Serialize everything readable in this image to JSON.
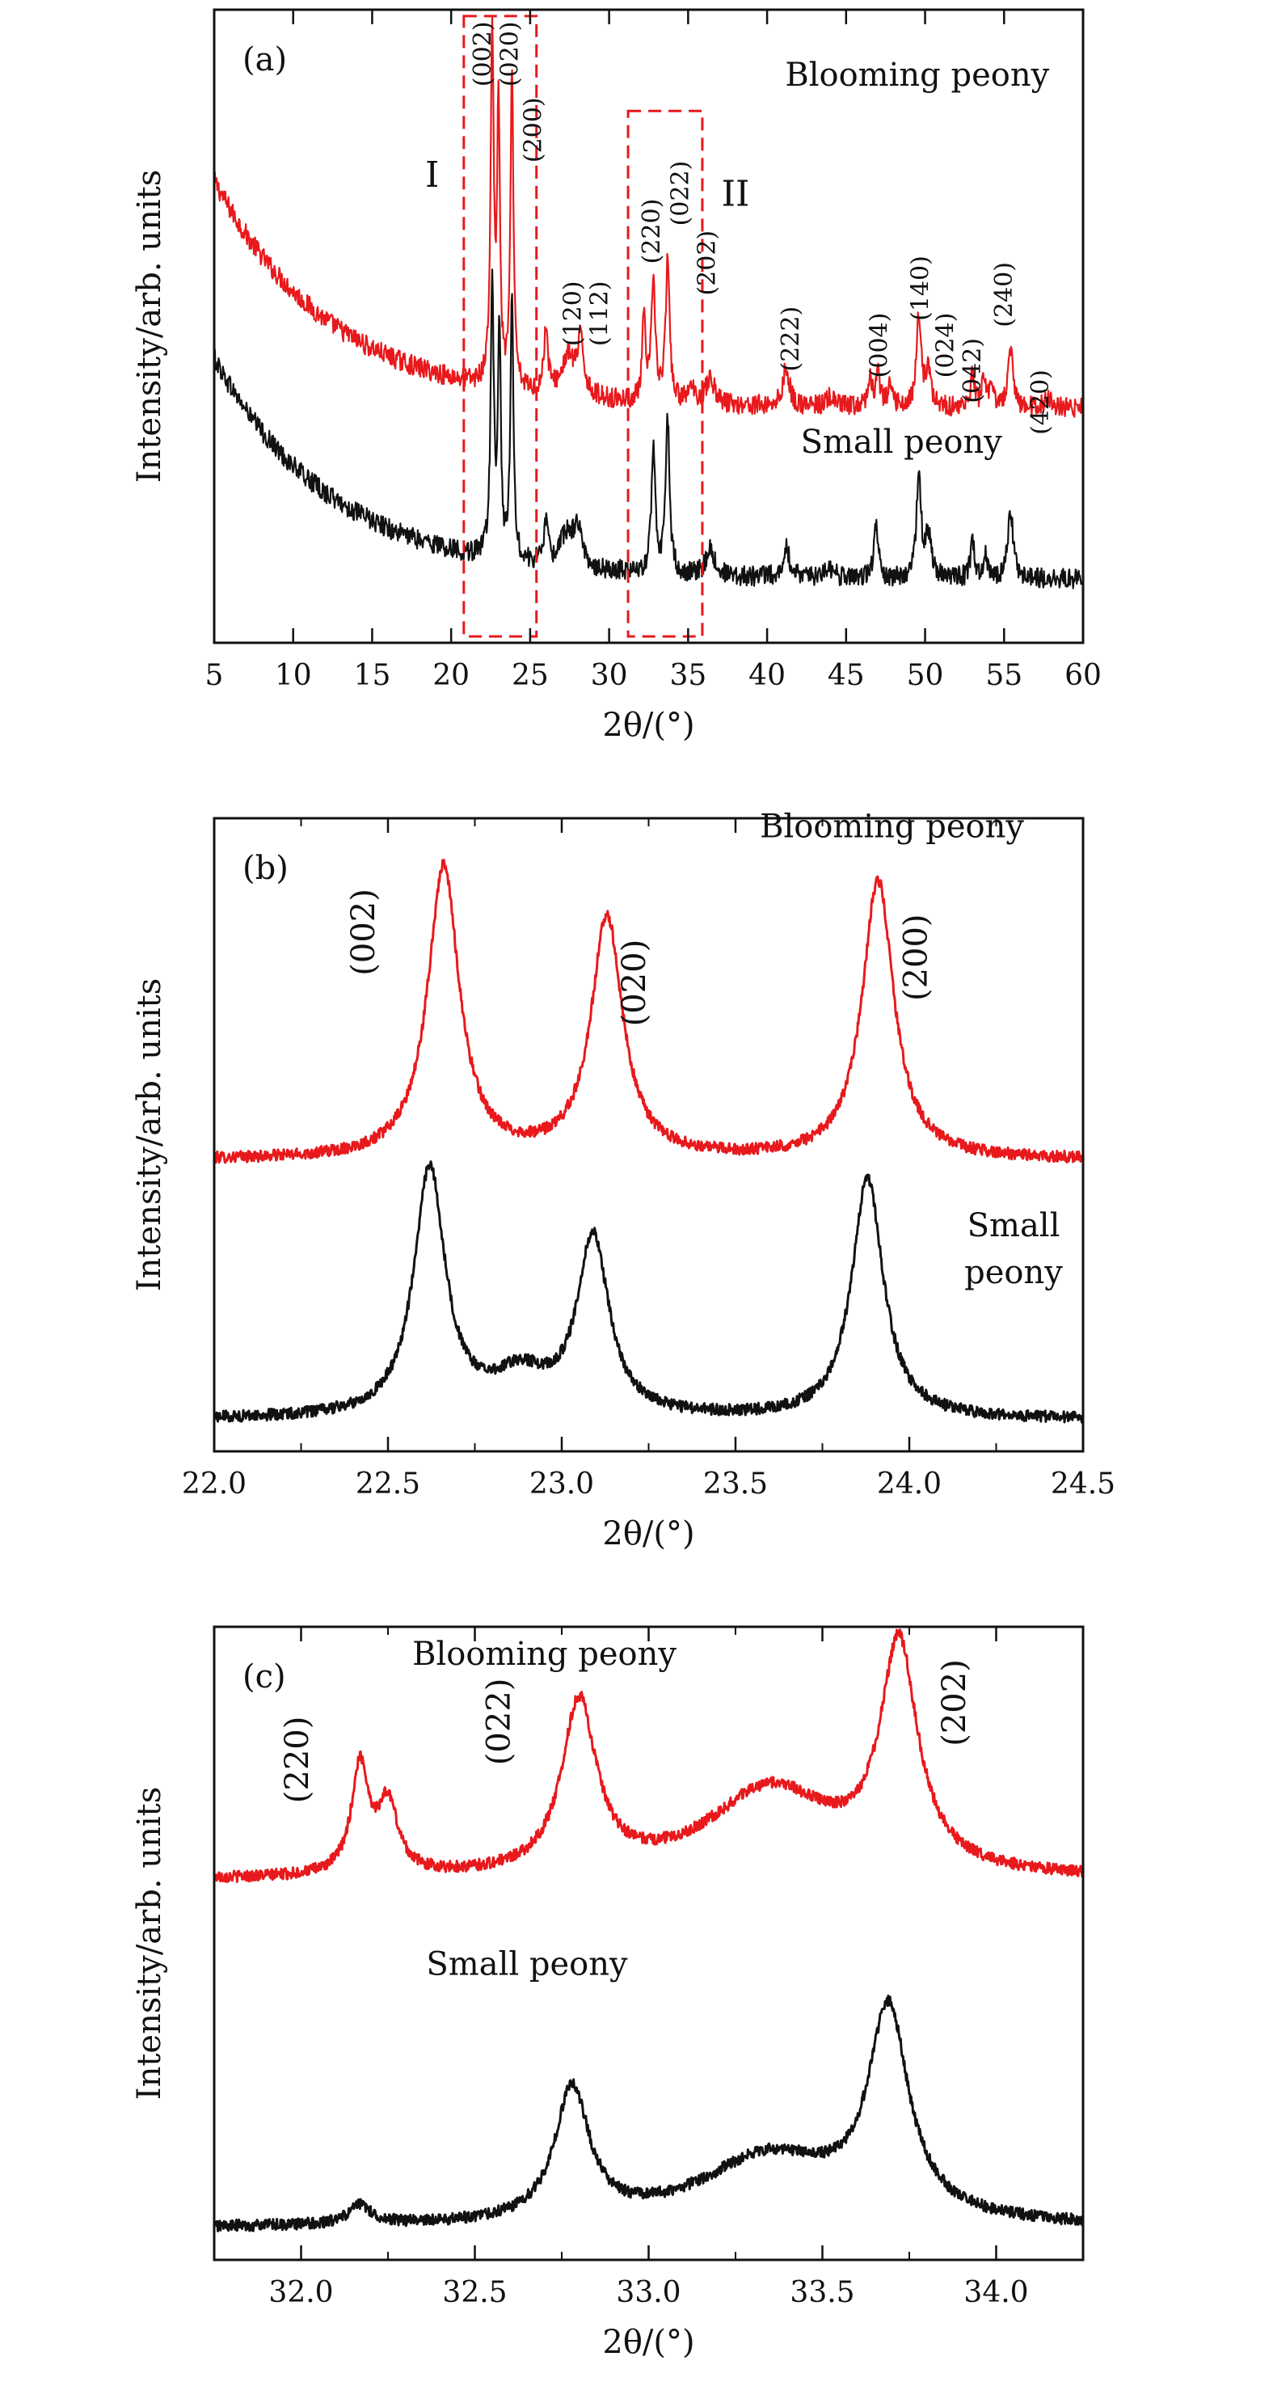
{
  "chart_data": [
    {
      "id": "a",
      "type": "line",
      "panel_label": "(a)",
      "xlabel": "2θ/(°)",
      "ylabel": "Intensity/arb. units",
      "xlim": [
        5,
        60
      ],
      "ylim": [
        0,
        100
      ],
      "x_ticks": [
        5,
        10,
        15,
        20,
        25,
        30,
        35,
        40,
        45,
        50,
        55,
        60
      ],
      "x_tick_labels": [
        "5",
        "10",
        "15",
        "20",
        "25",
        "30",
        "35",
        "40",
        "45",
        "50",
        "55",
        "60"
      ],
      "series": [
        {
          "name": "Blooming peony",
          "color": "#e8191c",
          "baseline": {
            "type": "exp",
            "floor": 37,
            "amplitude": 36,
            "x0": 5,
            "tau": 7.5
          },
          "noise": 1.6,
          "peaks": [
            {
              "x": 22.6,
              "h": 55,
              "w": 0.12
            },
            {
              "x": 23.0,
              "h": 44,
              "w": 0.1
            },
            {
              "x": 23.85,
              "h": 50,
              "w": 0.11
            },
            {
              "x": 26.0,
              "h": 10,
              "w": 0.15
            },
            {
              "x": 27.4,
              "h": 6,
              "w": 0.5
            },
            {
              "x": 28.2,
              "h": 8,
              "w": 0.25
            },
            {
              "x": 32.2,
              "h": 13,
              "w": 0.12
            },
            {
              "x": 32.8,
              "h": 19,
              "w": 0.15
            },
            {
              "x": 33.7,
              "h": 22,
              "w": 0.15
            },
            {
              "x": 35.2,
              "h": 2,
              "w": 0.3
            },
            {
              "x": 36.4,
              "h": 4,
              "w": 0.35
            },
            {
              "x": 41.2,
              "h": 6,
              "w": 0.25
            },
            {
              "x": 44.0,
              "h": 1.5,
              "w": 0.3
            },
            {
              "x": 46.5,
              "h": 5,
              "w": 0.12
            },
            {
              "x": 47.0,
              "h": 6,
              "w": 0.15
            },
            {
              "x": 47.8,
              "h": 3,
              "w": 0.2
            },
            {
              "x": 49.6,
              "h": 14,
              "w": 0.18
            },
            {
              "x": 50.2,
              "h": 6,
              "w": 0.2
            },
            {
              "x": 53.0,
              "h": 5,
              "w": 0.15
            },
            {
              "x": 53.7,
              "h": 4,
              "w": 0.15
            },
            {
              "x": 54.2,
              "h": 3,
              "w": 0.15
            },
            {
              "x": 55.4,
              "h": 9,
              "w": 0.2
            },
            {
              "x": 57.8,
              "h": 1.5,
              "w": 0.3
            }
          ]
        },
        {
          "name": "Small peony",
          "color": "#111111",
          "baseline": {
            "type": "exp",
            "floor": 10,
            "amplitude": 35,
            "x0": 5,
            "tau": 7.5
          },
          "noise": 1.6,
          "peaks": [
            {
              "x": 22.6,
              "h": 42,
              "w": 0.12
            },
            {
              "x": 23.05,
              "h": 37,
              "w": 0.1
            },
            {
              "x": 23.85,
              "h": 42,
              "w": 0.11
            },
            {
              "x": 26.0,
              "h": 7,
              "w": 0.15
            },
            {
              "x": 27.3,
              "h": 5,
              "w": 0.5
            },
            {
              "x": 28.0,
              "h": 6,
              "w": 0.3
            },
            {
              "x": 32.8,
              "h": 19,
              "w": 0.15
            },
            {
              "x": 33.7,
              "h": 25,
              "w": 0.15
            },
            {
              "x": 36.4,
              "h": 4,
              "w": 0.35
            },
            {
              "x": 41.2,
              "h": 5,
              "w": 0.25
            },
            {
              "x": 44.0,
              "h": 1.5,
              "w": 0.3
            },
            {
              "x": 46.9,
              "h": 9,
              "w": 0.15
            },
            {
              "x": 49.6,
              "h": 16,
              "w": 0.18
            },
            {
              "x": 50.2,
              "h": 7,
              "w": 0.2
            },
            {
              "x": 53.0,
              "h": 6,
              "w": 0.15
            },
            {
              "x": 53.8,
              "h": 4,
              "w": 0.15
            },
            {
              "x": 55.4,
              "h": 11,
              "w": 0.2
            }
          ]
        }
      ],
      "series_labels": [
        {
          "text": "Blooming peony",
          "x": 49.5,
          "y": 88
        },
        {
          "text": "Small peony",
          "x": 48.5,
          "y": 30
        }
      ],
      "peak_labels": [
        {
          "text": "(002)",
          "x": 22.5,
          "y": 93
        },
        {
          "text": "(020)",
          "x": 24.2,
          "y": 93
        },
        {
          "text": "(200)",
          "x": 25.7,
          "y": 81
        },
        {
          "text": "(120)",
          "x": 28.2,
          "y": 52
        },
        {
          "text": "(112)",
          "x": 29.9,
          "y": 52
        },
        {
          "text": "(220)",
          "x": 33.2,
          "y": 65
        },
        {
          "text": "(022)",
          "x": 35.0,
          "y": 71
        },
        {
          "text": "(202)",
          "x": 36.7,
          "y": 60
        },
        {
          "text": "(222)",
          "x": 42.0,
          "y": 48
        },
        {
          "text": "(004)",
          "x": 47.6,
          "y": 47
        },
        {
          "text": "(140)",
          "x": 50.2,
          "y": 56
        },
        {
          "text": "(024)",
          "x": 51.8,
          "y": 47
        },
        {
          "text": "(042)",
          "x": 53.5,
          "y": 43
        },
        {
          "text": "(240)",
          "x": 55.5,
          "y": 55
        },
        {
          "text": "(420)",
          "x": 57.8,
          "y": 38
        }
      ],
      "regions": [
        {
          "label": "I",
          "x0": 20.8,
          "x1": 25.4,
          "y0": 1,
          "y1": 99,
          "label_x": 18.8,
          "label_y": 72
        },
        {
          "label": "II",
          "x0": 31.2,
          "x1": 35.9,
          "y0": 1,
          "y1": 84,
          "label_x": 38.0,
          "label_y": 69
        }
      ]
    },
    {
      "id": "b",
      "type": "line",
      "panel_label": "(b)",
      "xlabel": "2θ/(°)",
      "ylabel": "Intensity/arb. units",
      "xlim": [
        22.0,
        24.5
      ],
      "ylim": [
        0,
        100
      ],
      "x_ticks": [
        22.0,
        22.5,
        23.0,
        23.5,
        24.0,
        24.5
      ],
      "x_tick_labels": [
        "22.0",
        "22.5",
        "23.0",
        "23.5",
        "24.0",
        "24.5"
      ],
      "series": [
        {
          "name": "Blooming peony",
          "color": "#e8191c",
          "baseline": {
            "type": "const",
            "floor": 46
          },
          "noise": 0.9,
          "peaks": [
            {
              "x": 22.66,
              "h": 46,
              "w": 0.055
            },
            {
              "x": 23.13,
              "h": 38,
              "w": 0.055
            },
            {
              "x": 23.91,
              "h": 44,
              "w": 0.055
            }
          ]
        },
        {
          "name": "Small peony",
          "color": "#111111",
          "baseline": {
            "type": "const",
            "floor": 5
          },
          "noise": 0.9,
          "peaks": [
            {
              "x": 22.62,
              "h": 39,
              "w": 0.055
            },
            {
              "x": 22.88,
              "h": 6,
              "w": 0.1
            },
            {
              "x": 23.09,
              "h": 28,
              "w": 0.055
            },
            {
              "x": 23.88,
              "h": 38,
              "w": 0.055
            }
          ]
        }
      ],
      "series_labels": [
        {
          "text": "Blooming peony",
          "x": 23.95,
          "y": 97
        },
        {
          "text": "Small peony",
          "x": 24.3,
          "y": 34,
          "second_line": "peony",
          "first_line": "Small"
        }
      ],
      "peak_labels": [
        {
          "text": "(002)",
          "x": 22.46,
          "y": 82
        },
        {
          "text": "(020)",
          "x": 23.24,
          "y": 74
        },
        {
          "text": "(200)",
          "x": 24.05,
          "y": 78
        }
      ],
      "regions": []
    },
    {
      "id": "c",
      "type": "line",
      "panel_label": "(c)",
      "xlabel": "2θ/(°)",
      "ylabel": "Intensity/arb. units",
      "xlim": [
        31.75,
        34.25
      ],
      "ylim": [
        0,
        100
      ],
      "x_ticks": [
        32.0,
        32.5,
        33.0,
        33.5,
        34.0
      ],
      "x_tick_labels": [
        "32.0",
        "32.5",
        "33.0",
        "33.5",
        "34.0"
      ],
      "series": [
        {
          "name": "Blooming peony",
          "color": "#e8191c",
          "baseline": {
            "type": "const",
            "floor": 60
          },
          "noise": 0.9,
          "peaks": [
            {
              "x": 32.17,
              "h": 17,
              "w": 0.03
            },
            {
              "x": 32.25,
              "h": 11,
              "w": 0.035
            },
            {
              "x": 32.8,
              "h": 27,
              "w": 0.06
            },
            {
              "x": 33.35,
              "h": 14,
              "w": 0.22
            },
            {
              "x": 33.72,
              "h": 35,
              "w": 0.065
            }
          ]
        },
        {
          "name": "Small peony",
          "color": "#111111",
          "baseline": {
            "type": "const",
            "floor": 5
          },
          "noise": 0.9,
          "peaks": [
            {
              "x": 32.17,
              "h": 3,
              "w": 0.04
            },
            {
              "x": 32.78,
              "h": 21,
              "w": 0.06
            },
            {
              "x": 33.35,
              "h": 11,
              "w": 0.25
            },
            {
              "x": 33.69,
              "h": 32,
              "w": 0.07
            }
          ]
        }
      ],
      "series_labels": [
        {
          "text": "Blooming peony",
          "x": 32.7,
          "y": 94
        },
        {
          "text": "Small peony",
          "x": 32.65,
          "y": 45
        }
      ],
      "peak_labels": [
        {
          "text": "(220)",
          "x": 32.02,
          "y": 79
        },
        {
          "text": "(022)",
          "x": 32.6,
          "y": 85
        },
        {
          "text": "(202)",
          "x": 33.91,
          "y": 88
        }
      ],
      "regions": []
    }
  ]
}
